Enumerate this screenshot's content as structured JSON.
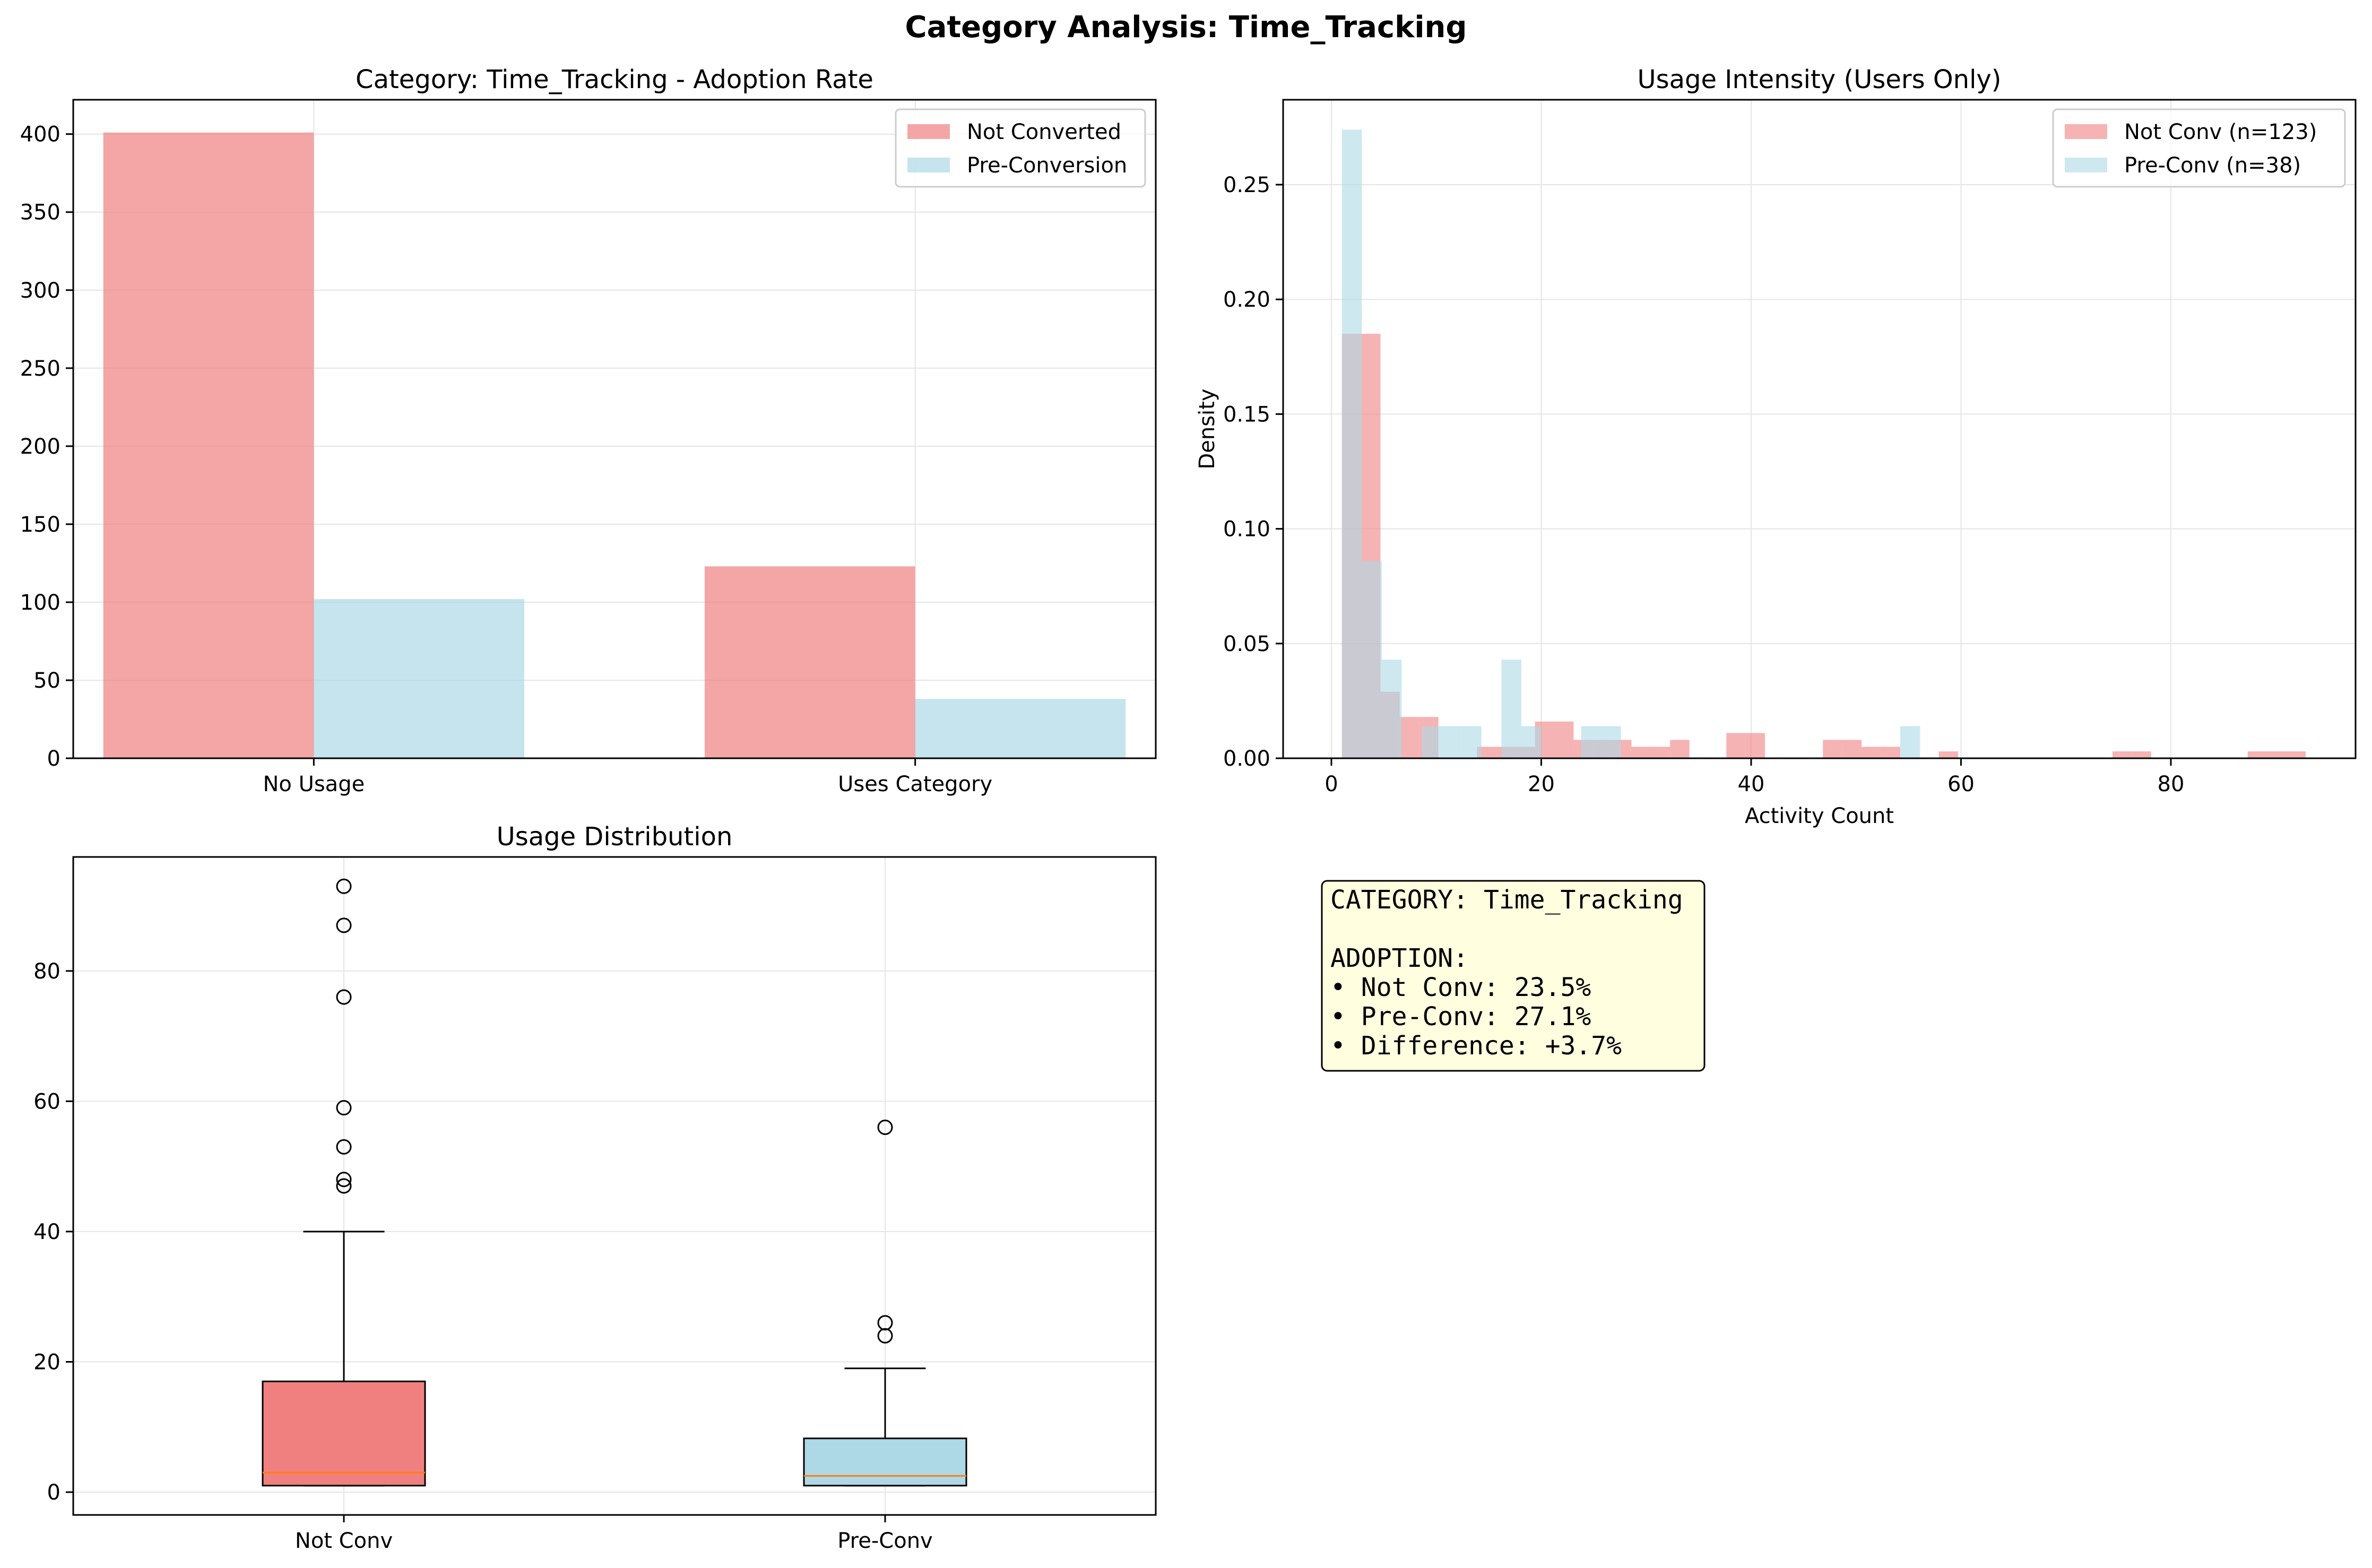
{
  "suptitle": "Category Analysis: Time_Tracking",
  "colors": {
    "not_converted": "#f08080",
    "pre_conversion": "#add8e6",
    "median": "#ff7f0e",
    "info_box_bg": "#ffffe0",
    "grid": "#e5e5e5"
  },
  "chart_data": [
    {
      "type": "bar",
      "title": "Category: Time_Tracking - Adoption Rate",
      "xlabel": "",
      "ylabel": "",
      "categories": [
        "No Usage",
        "Uses Category"
      ],
      "series": [
        {
          "name": "Not Converted",
          "values": [
            401,
            123
          ]
        },
        {
          "name": "Pre-Conversion",
          "values": [
            102,
            38
          ]
        }
      ],
      "ylim": [
        0,
        422
      ],
      "yticks": [
        0,
        50,
        100,
        150,
        200,
        250,
        300,
        350,
        400
      ],
      "grid": true,
      "legend": "top-right"
    },
    {
      "type": "histogram",
      "title": "Usage Intensity (Users Only)",
      "xlabel": "Activity Count",
      "ylabel": "Density",
      "xlim": [
        -4.6,
        97.6
      ],
      "ylim": [
        0,
        0.287
      ],
      "xticks": [
        0,
        20,
        40,
        60,
        80
      ],
      "yticks": [
        0.0,
        0.05,
        0.1,
        0.15,
        0.2,
        0.25
      ],
      "grid": true,
      "legend": "top-right",
      "series": [
        {
          "name": "Not Conv (n=123)",
          "bins": [
            [
              1.0,
              2.84,
              0.185
            ],
            [
              2.84,
              4.68,
              0.185
            ],
            [
              4.68,
              6.52,
              0.029
            ],
            [
              6.52,
              8.36,
              0.018
            ],
            [
              8.36,
              10.2,
              0.018
            ],
            [
              13.88,
              15.72,
              0.005
            ],
            [
              15.72,
              17.56,
              0.005
            ],
            [
              17.56,
              19.4,
              0.005
            ],
            [
              19.4,
              21.24,
              0.016
            ],
            [
              21.24,
              23.08,
              0.016
            ],
            [
              23.08,
              24.92,
              0.008
            ],
            [
              24.92,
              26.76,
              0.008
            ],
            [
              26.76,
              28.6,
              0.008
            ],
            [
              28.6,
              30.44,
              0.005
            ],
            [
              30.44,
              32.28,
              0.005
            ],
            [
              32.28,
              34.12,
              0.008
            ],
            [
              37.64,
              39.48,
              0.011
            ],
            [
              39.48,
              41.32,
              0.011
            ],
            [
              46.84,
              48.68,
              0.008
            ],
            [
              48.68,
              50.52,
              0.008
            ],
            [
              50.52,
              52.36,
              0.005
            ],
            [
              52.36,
              54.2,
              0.005
            ],
            [
              57.88,
              59.72,
              0.003
            ],
            [
              74.44,
              76.28,
              0.003
            ],
            [
              76.28,
              78.12,
              0.003
            ],
            [
              87.32,
              89.16,
              0.003
            ],
            [
              89.16,
              91.0,
              0.003
            ],
            [
              91.0,
              92.84,
              0.003
            ]
          ]
        },
        {
          "name": "Pre-Conv (n=38)",
          "bins": [
            [
              1.0,
              2.9,
              0.274
            ],
            [
              2.9,
              4.8,
              0.086
            ],
            [
              4.8,
              6.7,
              0.043
            ],
            [
              8.6,
              10.5,
              0.014
            ],
            [
              10.5,
              12.4,
              0.014
            ],
            [
              12.4,
              14.3,
              0.014
            ],
            [
              16.2,
              18.1,
              0.043
            ],
            [
              18.1,
              20.0,
              0.014
            ],
            [
              23.8,
              25.7,
              0.014
            ],
            [
              25.7,
              27.6,
              0.014
            ],
            [
              54.2,
              56.1,
              0.014
            ]
          ]
        }
      ]
    },
    {
      "type": "box",
      "title": "Usage Distribution",
      "xlabel": "",
      "ylabel": "",
      "categories": [
        "Not Conv",
        "Pre-Conv"
      ],
      "ylim": [
        -3.5,
        97.5
      ],
      "yticks": [
        0,
        20,
        40,
        60,
        80
      ],
      "grid": true,
      "boxes": [
        {
          "name": "Not Conv",
          "whisker_low": 1,
          "q1": 1,
          "median": 3,
          "q3": 17,
          "whisker_high": 40,
          "outliers": [
            47,
            48,
            53,
            59,
            76,
            87,
            93
          ]
        },
        {
          "name": "Pre-Conv",
          "whisker_low": 1,
          "q1": 1,
          "median": 2.5,
          "q3": 8.25,
          "whisker_high": 19,
          "outliers": [
            24,
            26,
            56
          ]
        }
      ]
    }
  ],
  "info_box": {
    "lines": [
      "CATEGORY: Time_Tracking",
      "",
      "ADOPTION:",
      "• Not Conv: 23.5%",
      "• Pre-Conv: 27.1%",
      "• Difference: +3.7%"
    ]
  }
}
